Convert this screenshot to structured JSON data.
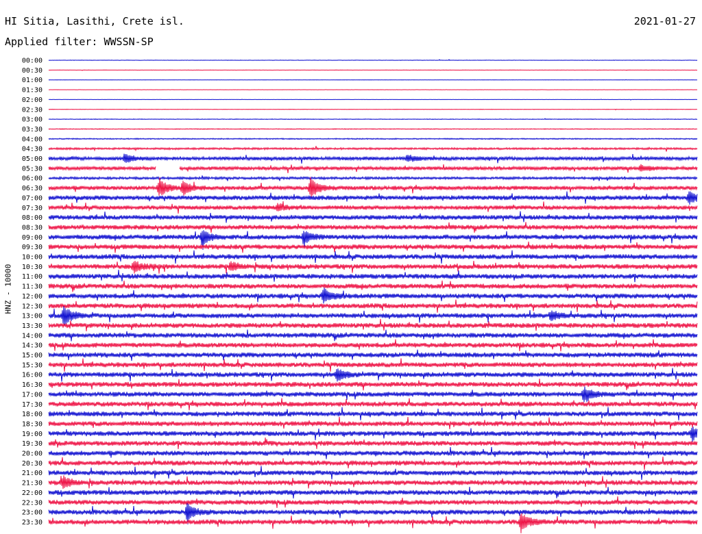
{
  "header": {
    "station": "HI Sitia, Lasithi, Crete isl.",
    "date": "2021-01-27",
    "filter": "Applied filter: WWSSN-SP"
  },
  "channel_label": "HNZ - 10000",
  "colors": {
    "even": "#1010d0",
    "odd": "#ee1144"
  },
  "chart_data": {
    "type": "line",
    "title": "HI Sitia, Lasithi, Crete isl.",
    "subtitle": "Applied filter: WWSSN-SP",
    "ylabel": "HNZ - 10000",
    "tick_labels": [
      "00:00",
      "00:30",
      "01:00",
      "01:30",
      "02:00",
      "02:30",
      "03:00",
      "03:30",
      "04:00",
      "04:30",
      "05:00",
      "05:30",
      "06:00",
      "06:30",
      "07:00",
      "07:30",
      "08:00",
      "08:30",
      "09:00",
      "09:30",
      "10:00",
      "10:30",
      "11:00",
      "11:30",
      "12:00",
      "12:30",
      "13:00",
      "13:30",
      "14:00",
      "14:30",
      "15:00",
      "15:30",
      "16:00",
      "16:30",
      "17:00",
      "17:30",
      "18:00",
      "18:30",
      "19:00",
      "19:30",
      "20:00",
      "20:30",
      "21:00",
      "21:30",
      "22:00",
      "22:30",
      "23:00",
      "23:30"
    ],
    "noise_levels": [
      0.3,
      0.2,
      0.2,
      0.2,
      0.2,
      0.3,
      0.4,
      0.5,
      0.7,
      1.2,
      2.2,
      2.2,
      1.5,
      2.6,
      2.8,
      2.6,
      2.8,
      2.8,
      3.0,
      3.0,
      3.0,
      3.0,
      3.0,
      3.0,
      3.0,
      3.0,
      3.0,
      3.0,
      3.0,
      3.0,
      3.0,
      3.0,
      3.0,
      3.0,
      3.0,
      3.0,
      3.0,
      3.0,
      3.0,
      3.0,
      3.0,
      3.0,
      3.0,
      3.0,
      3.0,
      3.0,
      3.0,
      3.0
    ],
    "events": [
      {
        "row": 10,
        "x": 183,
        "amp": 6
      },
      {
        "row": 10,
        "x": 595,
        "amp": 5
      },
      {
        "row": 11,
        "x": 935,
        "amp": 5
      },
      {
        "row": 13,
        "x": 232,
        "amp": 14
      },
      {
        "row": 13,
        "x": 267,
        "amp": 10
      },
      {
        "row": 13,
        "x": 453,
        "amp": 14
      },
      {
        "row": 14,
        "x": 1005,
        "amp": 9
      },
      {
        "row": 15,
        "x": 405,
        "amp": 5
      },
      {
        "row": 18,
        "x": 295,
        "amp": 11
      },
      {
        "row": 18,
        "x": 443,
        "amp": 9
      },
      {
        "row": 21,
        "x": 195,
        "amp": 8
      },
      {
        "row": 21,
        "x": 337,
        "amp": 7
      },
      {
        "row": 24,
        "x": 472,
        "amp": 10
      },
      {
        "row": 26,
        "x": 93,
        "amp": 14
      },
      {
        "row": 26,
        "x": 804,
        "amp": 7
      },
      {
        "row": 32,
        "x": 492,
        "amp": 10
      },
      {
        "row": 34,
        "x": 852,
        "amp": 11
      },
      {
        "row": 38,
        "x": 1010,
        "amp": 9
      },
      {
        "row": 43,
        "x": 93,
        "amp": 9
      },
      {
        "row": 46,
        "x": 273,
        "amp": 12
      },
      {
        "row": 47,
        "x": 760,
        "amp": 14
      }
    ],
    "gaps": [
      {
        "row": 11,
        "x_start": 228,
        "x_end": 261
      }
    ],
    "grid": false
  }
}
